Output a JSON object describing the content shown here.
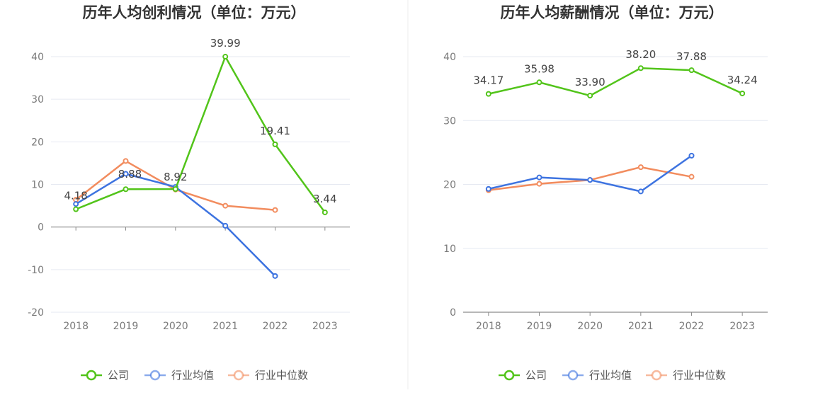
{
  "chart_data": [
    {
      "type": "line",
      "title": "历年人均创利情况（单位：万元）",
      "categories": [
        "2018",
        "2019",
        "2020",
        "2021",
        "2022",
        "2023"
      ],
      "ylim": [
        -20,
        40
      ],
      "yticks": [
        -20,
        -10,
        0,
        10,
        20,
        30,
        40
      ],
      "grid": true,
      "legend_position": "bottom",
      "series": [
        {
          "name": "公司",
          "color": "#52c41a",
          "values": [
            4.18,
            8.88,
            8.92,
            39.99,
            19.41,
            3.44
          ],
          "labels": [
            "4.18",
            "8.88",
            "8.92",
            "39.99",
            "19.41",
            "3.44"
          ]
        },
        {
          "name": "行业均值",
          "color": "#3d73e0",
          "values": [
            5.4,
            12.5,
            9.4,
            0.3,
            -11.5,
            null
          ]
        },
        {
          "name": "行业中位数",
          "color": "#f28c5e",
          "values": [
            6.4,
            15.5,
            8.8,
            5.0,
            4.0,
            null
          ]
        }
      ]
    },
    {
      "type": "line",
      "title": "历年人均薪酬情况（单位：万元）",
      "categories": [
        "2018",
        "2019",
        "2020",
        "2021",
        "2022",
        "2023"
      ],
      "ylim": [
        0,
        40
      ],
      "yticks": [
        0,
        10,
        20,
        30,
        40
      ],
      "grid": true,
      "legend_position": "bottom",
      "series": [
        {
          "name": "公司",
          "color": "#52c41a",
          "values": [
            34.17,
            35.98,
            33.9,
            38.2,
            37.88,
            34.24
          ],
          "labels": [
            "34.17",
            "35.98",
            "33.90",
            "38.20",
            "37.88",
            "34.24"
          ]
        },
        {
          "name": "行业均值",
          "color": "#3d73e0",
          "values": [
            19.3,
            21.1,
            20.7,
            18.9,
            24.5,
            null
          ]
        },
        {
          "name": "行业中位数",
          "color": "#f28c5e",
          "values": [
            19.1,
            20.1,
            20.7,
            22.7,
            21.2,
            null
          ]
        }
      ]
    }
  ]
}
